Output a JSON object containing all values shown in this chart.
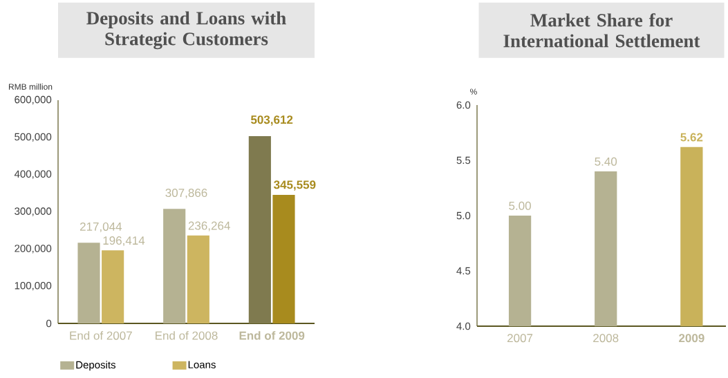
{
  "chart_data": [
    {
      "type": "bar",
      "title": "Deposits and Loans with Strategic Customers",
      "ylabel": "RMB million",
      "categories": [
        "End of 2007",
        "End of 2008",
        "**End of 2009**"
      ],
      "series": [
        {
          "name": "Deposits",
          "color": "#b5b292",
          "colors": [
            "#b5b292",
            "#b5b292",
            "#7f7a4f"
          ],
          "values": [
            217044,
            307866,
            503612
          ],
          "value_labels": [
            "217,044",
            "307,866",
            "**503,612**"
          ]
        },
        {
          "name": "Loans",
          "color": "#cdb560",
          "colors": [
            "#cdb560",
            "#cdb560",
            "#a88b1e"
          ],
          "values": [
            196414,
            236264,
            345559
          ],
          "value_labels": [
            "196,414",
            "236,264",
            "**345,559**"
          ]
        }
      ],
      "ylim": [
        0,
        600000
      ],
      "yticks": [
        0,
        {
          "value": 100000,
          "label": "100,000"
        },
        {
          "value": 200000,
          "label": "200,000"
        },
        {
          "value": 300000,
          "label": "300,000"
        },
        {
          "value": 400000,
          "label": "400,000"
        },
        {
          "value": 500000,
          "label": "500,000"
        },
        {
          "value": 600000,
          "label": "600,000"
        }
      ],
      "legend": "bottom"
    },
    {
      "type": "bar",
      "title": "Market Share for International Settlement",
      "ylabel": "%",
      "categories": [
        "2007",
        "2008",
        "**2009**"
      ],
      "series": [
        {
          "color": "#b5b292",
          "colors": [
            "#b5b292",
            "#b5b292",
            "#c9b25a"
          ],
          "values": [
            5.0,
            5.4,
            5.62
          ],
          "value_labels": [
            "5.00",
            "5.40",
            "**5.62**"
          ]
        }
      ],
      "ylim": [
        4,
        6
      ],
      "yticks": [
        {
          "value": 4,
          "label": "4.0"
        },
        {
          "value": 4.5,
          "label": "4.5"
        },
        {
          "value": 5,
          "label": "5.0"
        },
        {
          "value": 5.5,
          "label": "5.5"
        },
        {
          "value": 6,
          "label": "6.0"
        }
      ]
    }
  ]
}
